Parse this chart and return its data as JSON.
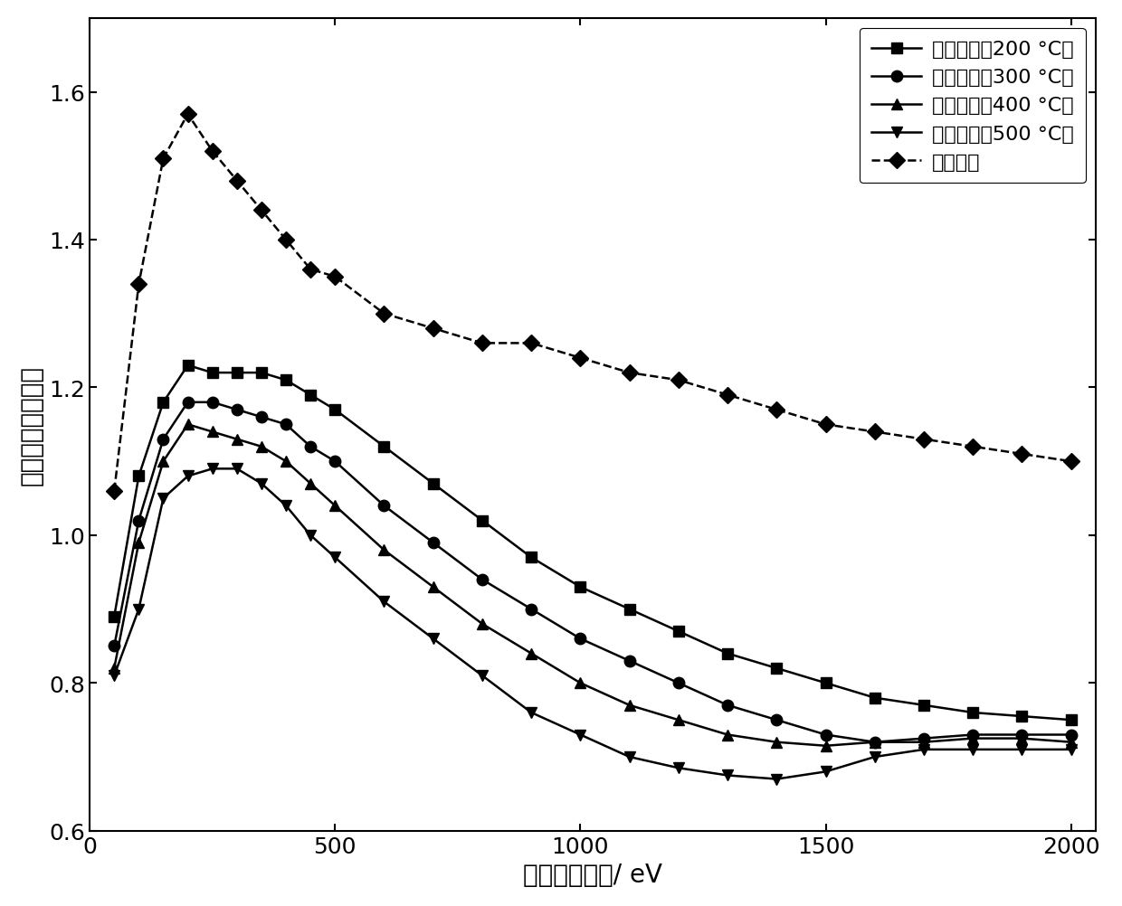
{
  "x_values": [
    50,
    100,
    150,
    200,
    250,
    300,
    350,
    400,
    450,
    500,
    600,
    700,
    800,
    900,
    1000,
    1100,
    1200,
    1300,
    1400,
    1500,
    1600,
    1700,
    1800,
    1900,
    2000
  ],
  "series": [
    {
      "label": "非晶碳膜（200 °C）",
      "marker": "s",
      "linestyle": "-",
      "color": "#000000",
      "values": [
        0.89,
        1.08,
        1.18,
        1.23,
        1.22,
        1.22,
        1.22,
        1.21,
        1.19,
        1.17,
        1.12,
        1.07,
        1.02,
        0.97,
        0.93,
        0.9,
        0.87,
        0.84,
        0.82,
        0.8,
        0.78,
        0.77,
        0.76,
        0.755,
        0.75
      ]
    },
    {
      "label": "非晶碳膜（300 °C）",
      "marker": "o",
      "linestyle": "-",
      "color": "#000000",
      "values": [
        0.85,
        1.02,
        1.13,
        1.18,
        1.18,
        1.17,
        1.16,
        1.15,
        1.12,
        1.1,
        1.04,
        0.99,
        0.94,
        0.9,
        0.86,
        0.83,
        0.8,
        0.77,
        0.75,
        0.73,
        0.72,
        0.725,
        0.73,
        0.73,
        0.73
      ]
    },
    {
      "label": "非晶碳膜（400 °C）",
      "marker": "^",
      "linestyle": "-",
      "color": "#000000",
      "values": [
        0.82,
        0.99,
        1.1,
        1.15,
        1.14,
        1.13,
        1.12,
        1.1,
        1.07,
        1.04,
        0.98,
        0.93,
        0.88,
        0.84,
        0.8,
        0.77,
        0.75,
        0.73,
        0.72,
        0.715,
        0.72,
        0.72,
        0.725,
        0.725,
        0.72
      ]
    },
    {
      "label": "非晶碳膜（500 °C）",
      "marker": "v",
      "linestyle": "-",
      "color": "#000000",
      "values": [
        0.81,
        0.9,
        1.05,
        1.08,
        1.09,
        1.09,
        1.07,
        1.04,
        1.0,
        0.97,
        0.91,
        0.86,
        0.81,
        0.76,
        0.73,
        0.7,
        0.685,
        0.675,
        0.67,
        0.68,
        0.7,
        0.71,
        0.71,
        0.71,
        0.71
      ]
    },
    {
      "label": "不锈锢片",
      "marker": "D",
      "linestyle": "--",
      "color": "#000000",
      "values": [
        1.06,
        1.34,
        1.51,
        1.57,
        1.52,
        1.48,
        1.44,
        1.4,
        1.36,
        1.35,
        1.3,
        1.28,
        1.26,
        1.26,
        1.24,
        1.22,
        1.21,
        1.19,
        1.17,
        1.15,
        1.14,
        1.13,
        1.12,
        1.11,
        1.1
      ]
    }
  ],
  "xlabel": "入射电子能量/ eV",
  "ylabel": "二次电子发射系数",
  "xlim": [
    0,
    2050
  ],
  "ylim": [
    0.6,
    1.7
  ],
  "xticks": [
    0,
    500,
    1000,
    1500,
    2000
  ],
  "yticks": [
    0.6,
    0.8,
    1.0,
    1.2,
    1.4,
    1.6
  ],
  "label_fontsize": 20,
  "tick_fontsize": 18,
  "legend_fontsize": 16,
  "marker_size": 9,
  "linewidth": 1.8
}
